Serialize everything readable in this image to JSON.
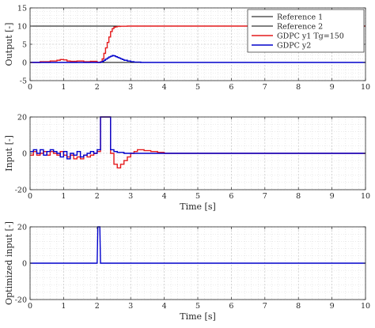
{
  "chart_data": [
    {
      "type": "line",
      "xlabel": "",
      "ylabel": "Output [-]",
      "xlim": [
        0,
        10
      ],
      "ylim": [
        -5,
        15
      ],
      "xticks": [
        0,
        1,
        2,
        3,
        4,
        5,
        6,
        7,
        8,
        9,
        10
      ],
      "yticks": [
        -5,
        0,
        5,
        10,
        15
      ],
      "grid": true,
      "legend_position": "top-right",
      "series": [
        {
          "name": "Reference 1",
          "color": "#000000",
          "step": false,
          "x": [
            0,
            10
          ],
          "y": [
            10,
            10
          ]
        },
        {
          "name": "Reference 2",
          "color": "#000000",
          "step": false,
          "x": [
            0,
            10
          ],
          "y": [
            0,
            0
          ]
        },
        {
          "name": "GDPC y1 Tg=150",
          "color": "#e41a1c",
          "step": true,
          "x": [
            0,
            0.3,
            0.6,
            0.8,
            0.9,
            1.0,
            1.1,
            1.2,
            1.4,
            1.6,
            1.8,
            2.0,
            2.1,
            2.15,
            2.2,
            2.25,
            2.3,
            2.35,
            2.4,
            2.45,
            2.5,
            2.55,
            2.6,
            2.7,
            2.9,
            3.2,
            10
          ],
          "y": [
            0,
            0.2,
            0.4,
            0.6,
            0.8,
            0.7,
            0.4,
            0.3,
            0.4,
            0.2,
            0.3,
            0,
            0.2,
            1,
            2.5,
            4,
            5.5,
            7,
            8.5,
            9.3,
            9.7,
            9.8,
            9.9,
            9.95,
            10,
            10,
            10
          ]
        },
        {
          "name": "GDPC y2",
          "color": "#0000cc",
          "step": true,
          "x": [
            0,
            2.0,
            2.1,
            2.15,
            2.2,
            2.25,
            2.3,
            2.35,
            2.4,
            2.45,
            2.5,
            2.55,
            2.6,
            2.65,
            2.7,
            2.75,
            2.8,
            2.9,
            3.0,
            3.1,
            3.3,
            10
          ],
          "y": [
            0,
            0,
            0.1,
            0.3,
            0.6,
            0.9,
            1.2,
            1.5,
            1.7,
            1.9,
            1.8,
            1.6,
            1.4,
            1.2,
            1.0,
            0.8,
            0.6,
            0.4,
            0.2,
            0.1,
            0,
            0
          ]
        }
      ]
    },
    {
      "type": "line",
      "xlabel": "Time [s]",
      "ylabel": "Input [-]",
      "xlim": [
        0,
        10
      ],
      "ylim": [
        -20,
        20
      ],
      "xticks": [
        0,
        1,
        2,
        3,
        4,
        5,
        6,
        7,
        8,
        9,
        10
      ],
      "yticks": [
        -20,
        0,
        20
      ],
      "grid": true,
      "series": [
        {
          "name": "",
          "color": "#e41a1c",
          "step": true,
          "x": [
            0,
            0.1,
            0.2,
            0.3,
            0.4,
            0.5,
            0.6,
            0.7,
            0.8,
            0.9,
            1.0,
            1.1,
            1.2,
            1.3,
            1.4,
            1.5,
            1.6,
            1.7,
            1.8,
            1.9,
            2.0,
            2.1,
            2.4,
            2.5,
            2.6,
            2.7,
            2.8,
            2.9,
            3.0,
            3.1,
            3.2,
            3.4,
            3.6,
            3.8,
            4.0,
            4.3,
            10
          ],
          "y": [
            -1,
            1,
            -1,
            0,
            1,
            -1,
            1,
            0,
            -1,
            1,
            -1,
            -2,
            -1,
            -3,
            -2,
            -3,
            -1,
            -2,
            -1,
            0,
            1,
            20,
            0,
            -6,
            -8,
            -6,
            -4,
            -2,
            0,
            1,
            2,
            1.5,
            1,
            0.5,
            0,
            0,
            0
          ]
        },
        {
          "name": "",
          "color": "#0000cc",
          "step": true,
          "x": [
            0,
            0.1,
            0.2,
            0.3,
            0.4,
            0.5,
            0.6,
            0.7,
            0.8,
            0.9,
            1.0,
            1.1,
            1.2,
            1.3,
            1.4,
            1.5,
            1.6,
            1.7,
            1.8,
            1.9,
            2.0,
            2.1,
            2.4,
            2.5,
            2.6,
            2.8,
            3.0,
            10
          ],
          "y": [
            1,
            2,
            0,
            2,
            -1,
            1,
            2,
            1,
            0,
            -2,
            1,
            -3,
            0,
            -1,
            1,
            -2,
            -1,
            0,
            1,
            0,
            2,
            20,
            2,
            1,
            0.5,
            0,
            0,
            0
          ]
        }
      ]
    },
    {
      "type": "line",
      "xlabel": "Time [s]",
      "ylabel": "Optimized input [-]",
      "xlim": [
        0,
        10
      ],
      "ylim": [
        -20,
        20
      ],
      "xticks": [
        0,
        1,
        2,
        3,
        4,
        5,
        6,
        7,
        8,
        9,
        10
      ],
      "yticks": [
        -20,
        0,
        20
      ],
      "grid": true,
      "series": [
        {
          "name": "",
          "color": "#0000cc",
          "step": false,
          "x": [
            0,
            2.0,
            2.02,
            2.08,
            2.1,
            10
          ],
          "y": [
            0,
            0,
            20,
            20,
            0,
            0
          ]
        }
      ]
    }
  ]
}
